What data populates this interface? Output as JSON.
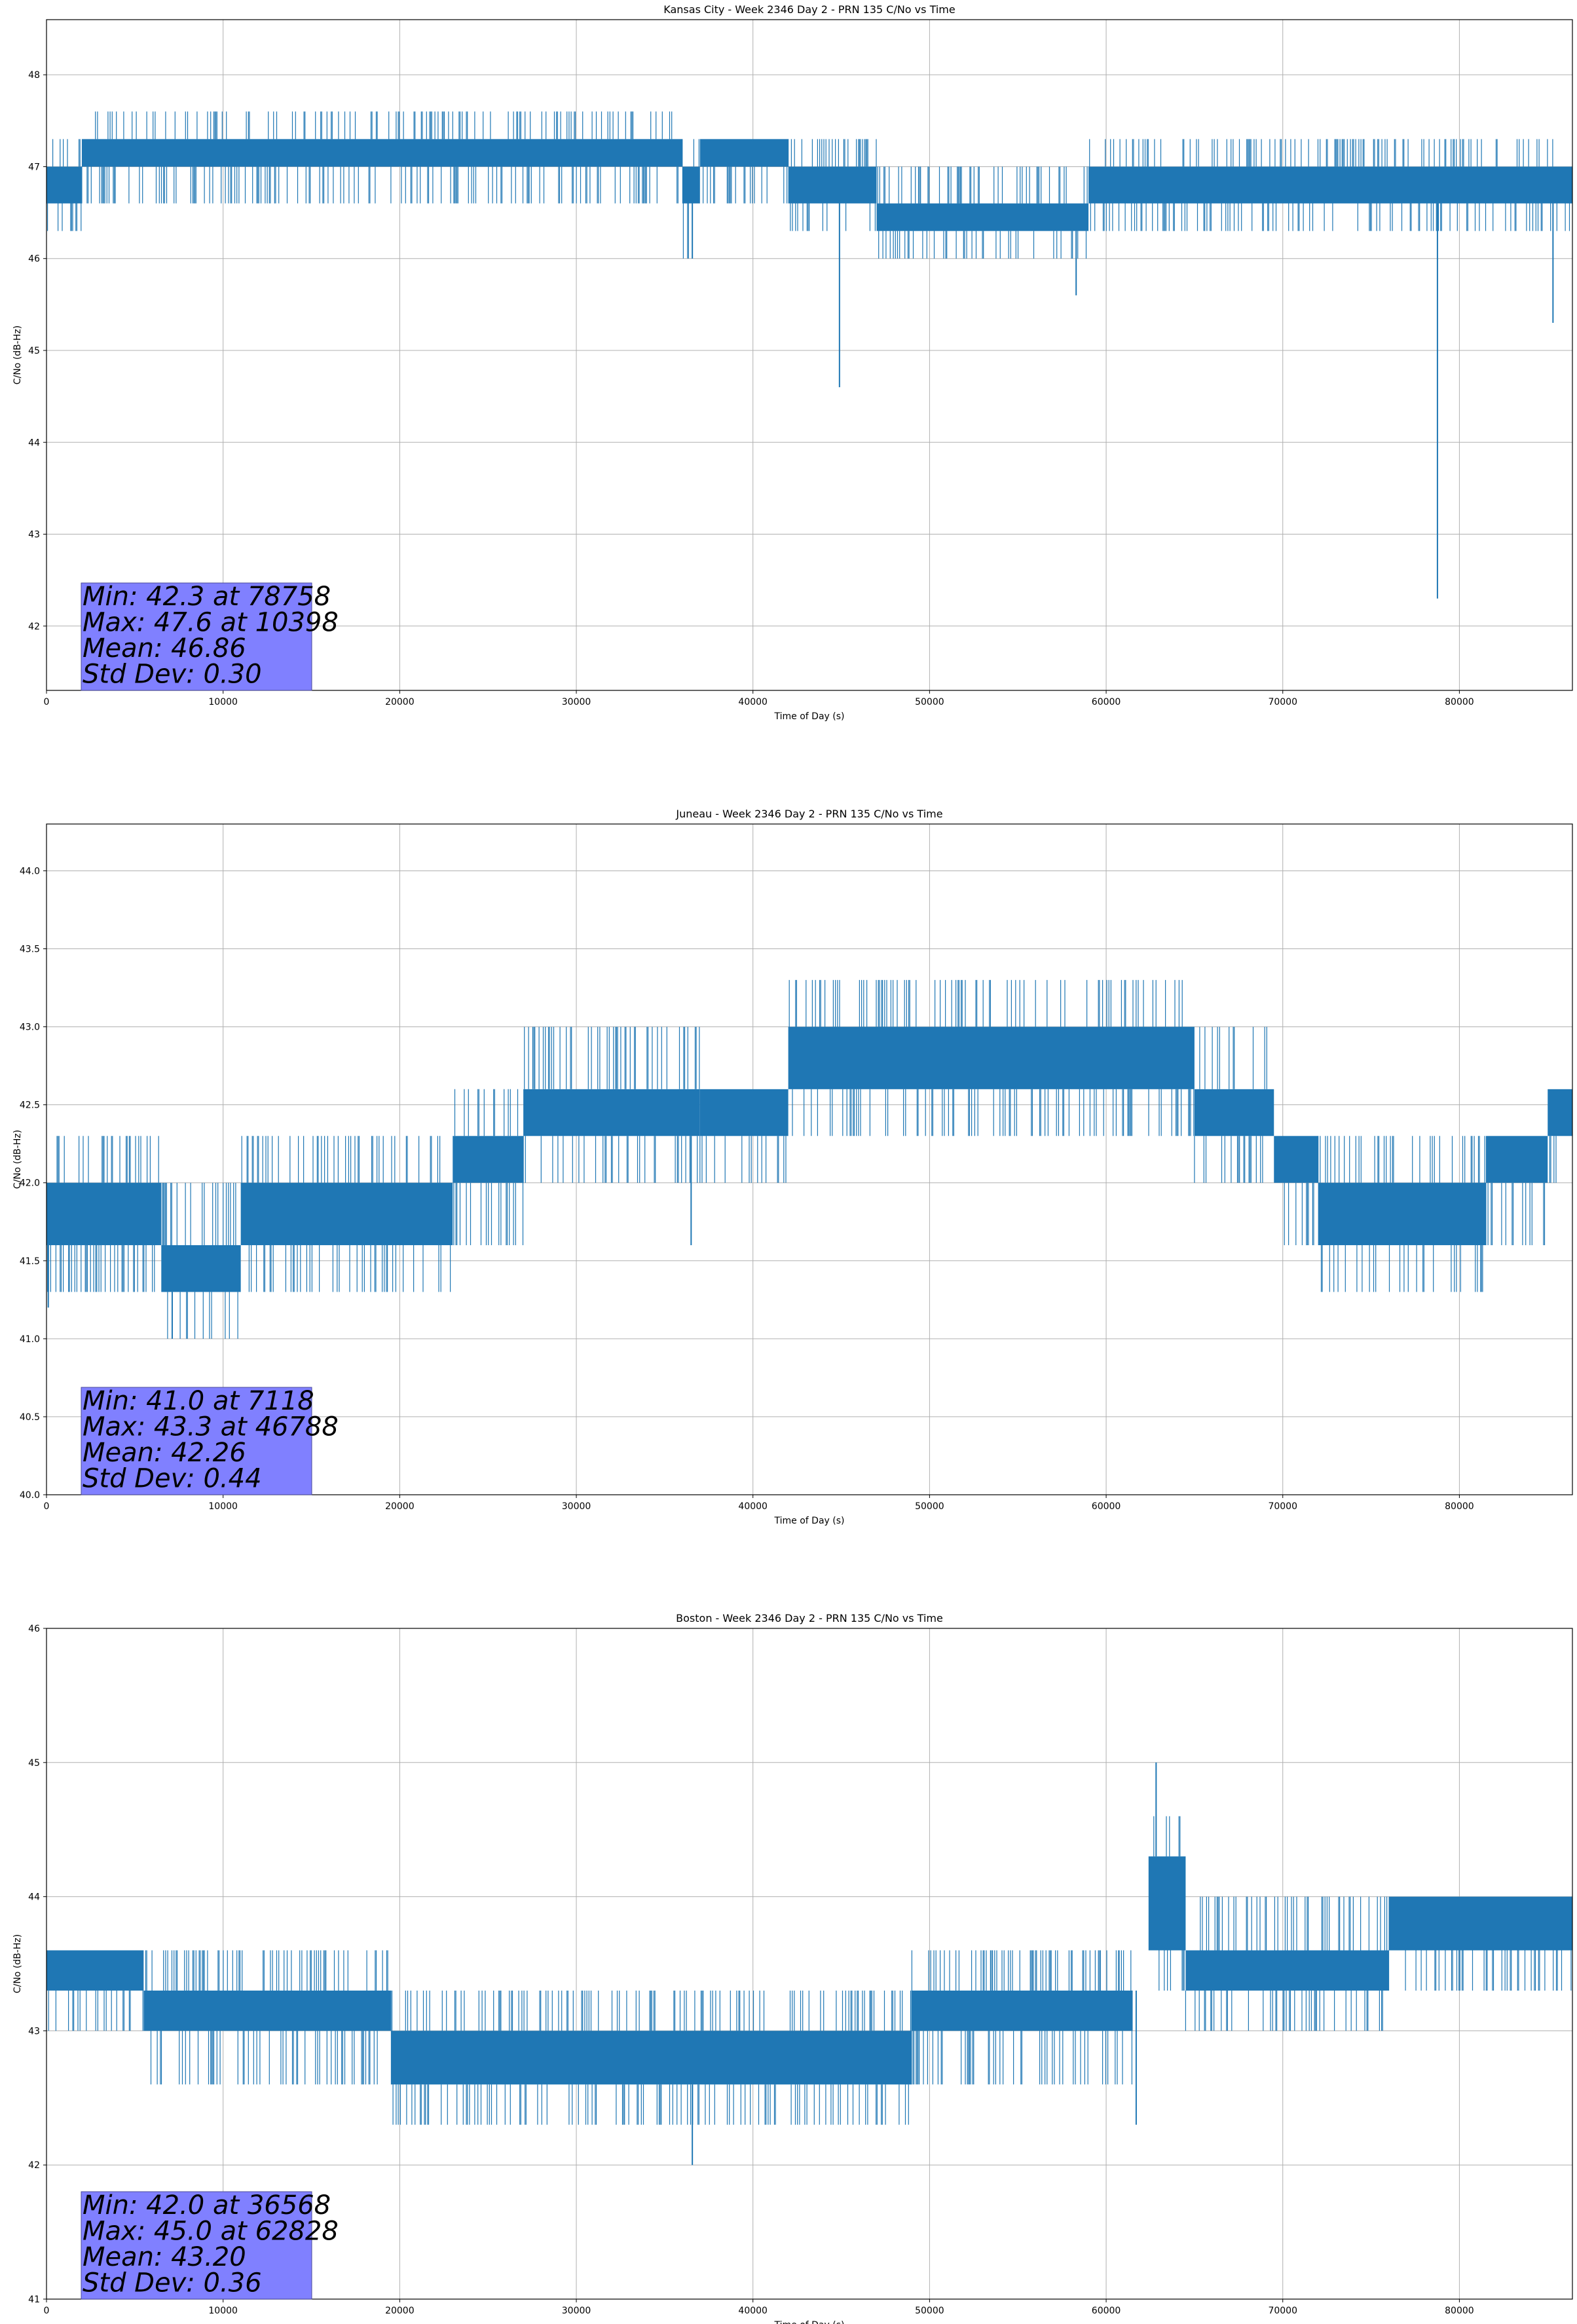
{
  "chart_data": [
    {
      "type": "line",
      "title": "Kansas City - Week 2346 Day 2 - PRN 135 C/No vs Time",
      "xlabel": "Time of Day (s)",
      "ylabel": "C/No (dB-Hz)",
      "xlim": [
        0,
        86400
      ],
      "ylim": [
        41.3,
        48.6
      ],
      "xticks": [
        0,
        10000,
        20000,
        30000,
        40000,
        50000,
        60000,
        70000,
        80000
      ],
      "xtick_labels": [
        "0",
        "10000",
        "20000",
        "30000",
        "40000",
        "50000",
        "60000",
        "70000",
        "80000"
      ],
      "yticks": [
        42,
        43,
        44,
        45,
        46,
        47,
        48
      ],
      "ytick_labels": [
        "42",
        "43",
        "44",
        "45",
        "46",
        "47",
        "48"
      ],
      "grid": true,
      "series_color": "#1f77b4",
      "bands": [
        {
          "x": [
            0,
            2000
          ],
          "low": 46.6,
          "high": 47.0,
          "spike_high": 47.3,
          "spike_low": 46.3
        },
        {
          "x": [
            2000,
            36000
          ],
          "low": 47.0,
          "high": 47.3,
          "spike_high": 47.6,
          "spike_low": 46.6
        },
        {
          "x": [
            36000,
            37000
          ],
          "low": 46.6,
          "high": 47.0,
          "spike_high": 47.3,
          "spike_low": 46.0
        },
        {
          "x": [
            37000,
            42000
          ],
          "low": 47.0,
          "high": 47.3,
          "spike_high": 47.3,
          "spike_low": 46.6
        },
        {
          "x": [
            42000,
            47000
          ],
          "low": 46.6,
          "high": 47.0,
          "spike_high": 47.3,
          "spike_low": 46.3
        },
        {
          "x": [
            47000,
            59000
          ],
          "low": 46.3,
          "high": 46.6,
          "spike_high": 47.0,
          "spike_low": 46.0
        },
        {
          "x": [
            59000,
            86400
          ],
          "low": 46.6,
          "high": 47.0,
          "spike_high": 47.3,
          "spike_low": 46.3
        }
      ],
      "dips": [
        {
          "x": 36568,
          "y": 46.0
        },
        {
          "x": 44900,
          "y": 44.6
        },
        {
          "x": 58300,
          "y": 45.6
        },
        {
          "x": 78758,
          "y": 42.3
        },
        {
          "x": 85300,
          "y": 45.3
        }
      ],
      "stats": {
        "min": "Min: 42.3 at 78758",
        "max": "Max: 47.6 at 10398",
        "mean": "Mean: 46.86",
        "std": "Std Dev: 0.30"
      }
    },
    {
      "type": "line",
      "title": "Juneau - Week 2346 Day 2 - PRN 135 C/No vs Time",
      "xlabel": "Time of Day (s)",
      "ylabel": "C/No (dB-Hz)",
      "xlim": [
        0,
        86400
      ],
      "ylim": [
        40.0,
        44.3
      ],
      "xticks": [
        0,
        10000,
        20000,
        30000,
        40000,
        50000,
        60000,
        70000,
        80000
      ],
      "xtick_labels": [
        "0",
        "10000",
        "20000",
        "30000",
        "40000",
        "50000",
        "60000",
        "70000",
        "80000"
      ],
      "yticks": [
        40.0,
        40.5,
        41.0,
        41.5,
        42.0,
        42.5,
        43.0,
        43.5,
        44.0
      ],
      "ytick_labels": [
        "40.0",
        "40.5",
        "41.0",
        "41.5",
        "42.0",
        "42.5",
        "43.0",
        "43.5",
        "44.0"
      ],
      "grid": true,
      "series_color": "#1f77b4",
      "bands": [
        {
          "x": [
            0,
            6500
          ],
          "low": 41.6,
          "high": 42.0,
          "spike_high": 42.3,
          "spike_low": 41.3
        },
        {
          "x": [
            6500,
            11000
          ],
          "low": 41.3,
          "high": 41.6,
          "spike_high": 42.0,
          "spike_low": 41.0
        },
        {
          "x": [
            11000,
            23000
          ],
          "low": 41.6,
          "high": 42.0,
          "spike_high": 42.3,
          "spike_low": 41.3
        },
        {
          "x": [
            23000,
            27000
          ],
          "low": 42.0,
          "high": 42.3,
          "spike_high": 42.6,
          "spike_low": 41.6
        },
        {
          "x": [
            27000,
            37000
          ],
          "low": 42.3,
          "high": 42.6,
          "spike_high": 43.0,
          "spike_low": 42.0
        },
        {
          "x": [
            37000,
            42000
          ],
          "low": 42.3,
          "high": 42.6,
          "spike_high": 42.6,
          "spike_low": 42.0
        },
        {
          "x": [
            42000,
            65000
          ],
          "low": 42.6,
          "high": 43.0,
          "spike_high": 43.3,
          "spike_low": 42.3
        },
        {
          "x": [
            65000,
            69500
          ],
          "low": 42.3,
          "high": 42.6,
          "spike_high": 43.0,
          "spike_low": 42.0
        },
        {
          "x": [
            69500,
            72000
          ],
          "low": 42.0,
          "high": 42.3,
          "spike_high": 42.3,
          "spike_low": 41.6
        },
        {
          "x": [
            72000,
            81500
          ],
          "low": 41.6,
          "high": 42.0,
          "spike_high": 42.3,
          "spike_low": 41.3
        },
        {
          "x": [
            81500,
            85000
          ],
          "low": 42.0,
          "high": 42.3,
          "spike_high": 42.3,
          "spike_low": 41.6
        },
        {
          "x": [
            85000,
            86400
          ],
          "low": 42.3,
          "high": 42.6,
          "spike_high": 42.6,
          "spike_low": 42.0
        }
      ],
      "dips": [
        {
          "x": 100,
          "y": 41.2
        },
        {
          "x": 7118,
          "y": 41.0
        },
        {
          "x": 36500,
          "y": 41.6
        }
      ],
      "stats": {
        "min": "Min: 41.0 at 7118",
        "max": "Max: 43.3 at 46788",
        "mean": "Mean: 42.26",
        "std": "Std Dev: 0.44"
      }
    },
    {
      "type": "line",
      "title": "Boston - Week 2346 Day 2 - PRN 135 C/No vs Time",
      "xlabel": "Time of Day (s)",
      "ylabel": "C/No (dB-Hz)",
      "xlim": [
        0,
        86400
      ],
      "ylim": [
        41,
        46
      ],
      "xticks": [
        0,
        10000,
        20000,
        30000,
        40000,
        50000,
        60000,
        70000,
        80000
      ],
      "xtick_labels": [
        "0",
        "10000",
        "20000",
        "30000",
        "40000",
        "50000",
        "60000",
        "70000",
        "80000"
      ],
      "yticks": [
        41,
        42,
        43,
        44,
        45,
        46
      ],
      "ytick_labels": [
        "41",
        "42",
        "43",
        "44",
        "45",
        "46"
      ],
      "grid": true,
      "series_color": "#1f77b4",
      "bands": [
        {
          "x": [
            0,
            5500
          ],
          "low": 43.3,
          "high": 43.6,
          "spike_high": 43.6,
          "spike_low": 43.0
        },
        {
          "x": [
            5500,
            19500
          ],
          "low": 43.0,
          "high": 43.3,
          "spike_high": 43.6,
          "spike_low": 42.6
        },
        {
          "x": [
            19500,
            49000
          ],
          "low": 42.6,
          "high": 43.0,
          "spike_high": 43.3,
          "spike_low": 42.3
        },
        {
          "x": [
            49000,
            61500
          ],
          "low": 43.0,
          "high": 43.3,
          "spike_high": 43.6,
          "spike_low": 42.6
        },
        {
          "x": [
            62400,
            64500
          ],
          "low": 43.6,
          "high": 44.3,
          "spike_high": 44.6,
          "spike_low": 43.3
        },
        {
          "x": [
            64500,
            76000
          ],
          "low": 43.3,
          "high": 43.6,
          "spike_high": 44.0,
          "spike_low": 43.0
        },
        {
          "x": [
            76000,
            86400
          ],
          "low": 43.6,
          "high": 44.0,
          "spike_high": 44.0,
          "spike_low": 43.3
        }
      ],
      "dips": [
        {
          "x": 36568,
          "y": 42.0
        },
        {
          "x": 61700,
          "y": 42.3
        },
        {
          "x": 62828,
          "y": 45.0
        }
      ],
      "stats": {
        "min": "Min: 42.0 at 36568",
        "max": "Max: 45.0 at 62828",
        "mean": "Mean: 43.20",
        "std": "Std Dev: 0.36"
      }
    }
  ]
}
